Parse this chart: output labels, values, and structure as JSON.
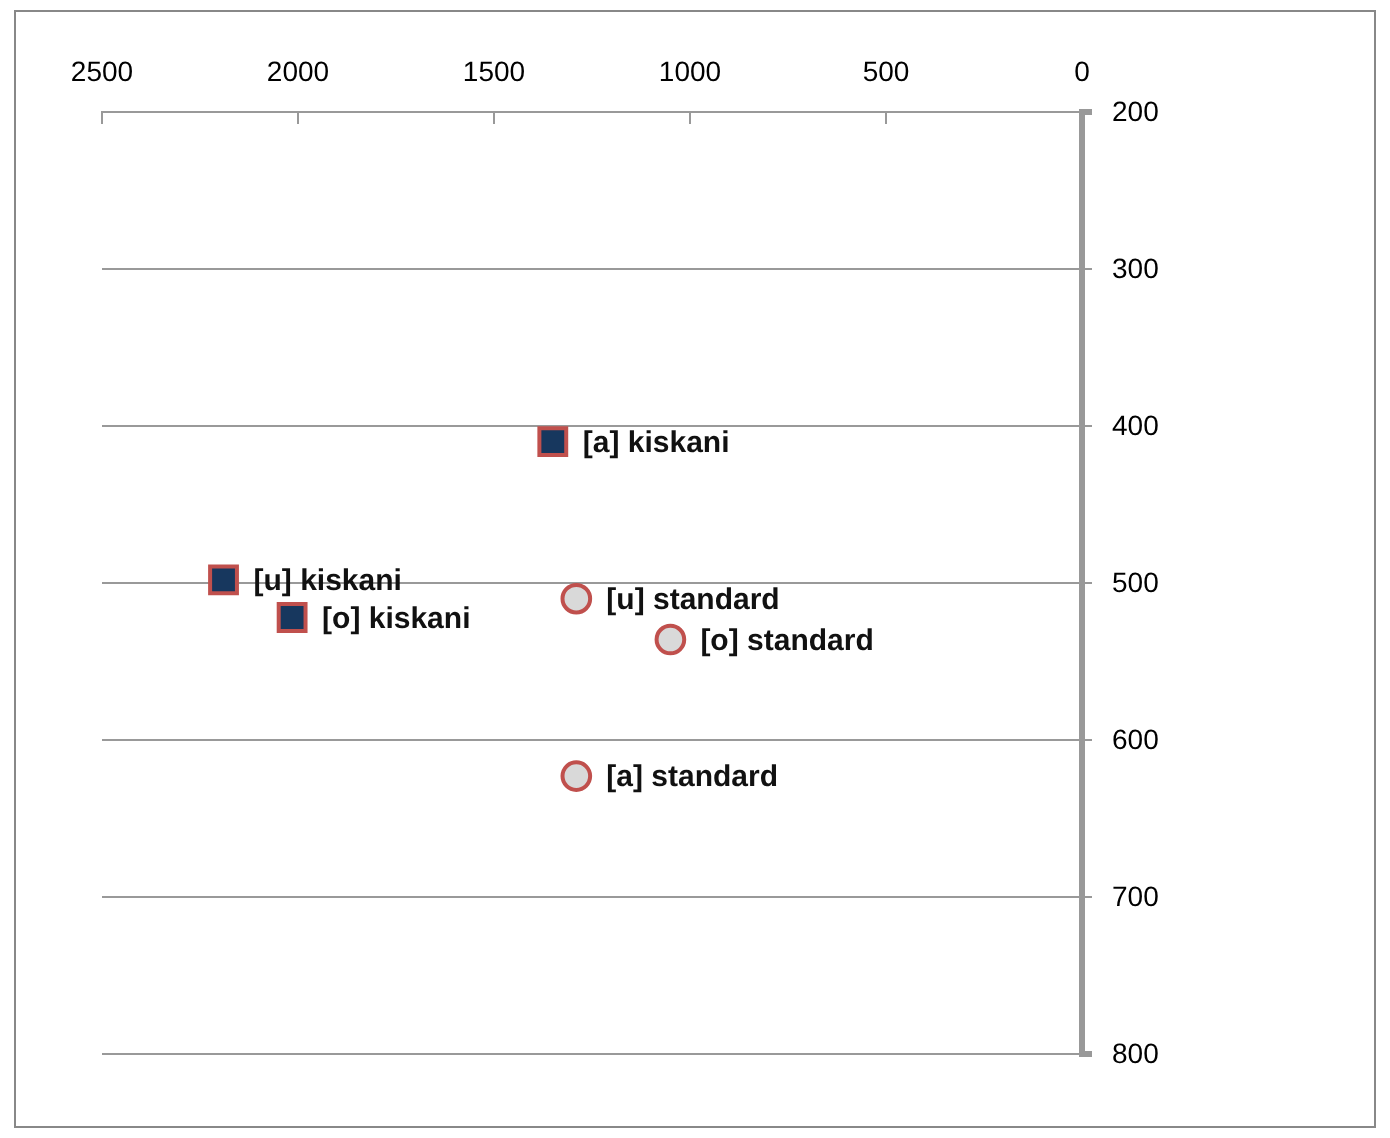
{
  "chart_data": {
    "type": "scatter",
    "xlim": [
      2500,
      0
    ],
    "xticks": [
      2500,
      2000,
      1500,
      1000,
      500,
      0
    ],
    "ylim": [
      800,
      200
    ],
    "yticks": [
      200,
      300,
      400,
      500,
      600,
      700,
      800
    ],
    "grid": "y",
    "series": [
      {
        "color": "#17375e",
        "marker": "square",
        "x": [
          1350,
          2190,
          2015
        ],
        "values": [
          410,
          498,
          522
        ]
      },
      {
        "color": "#d9d9d9",
        "marker": "circle",
        "x": [
          1290,
          1050,
          1290
        ],
        "values": [
          510,
          536,
          623
        ]
      }
    ],
    "annotations": [
      {
        "text": "[a] kiskani",
        "x": 1350,
        "y": 410
      },
      {
        "text": "[u] kiskani",
        "x": 2190,
        "y": 498
      },
      {
        "text": "[o] kiskani",
        "x": 2015,
        "y": 522
      },
      {
        "text": "[u] standard",
        "x": 1290,
        "y": 510
      },
      {
        "text": "[o] standard",
        "x": 1050,
        "y": 536
      },
      {
        "text": "[a] standard",
        "x": 1290,
        "y": 623
      }
    ]
  }
}
